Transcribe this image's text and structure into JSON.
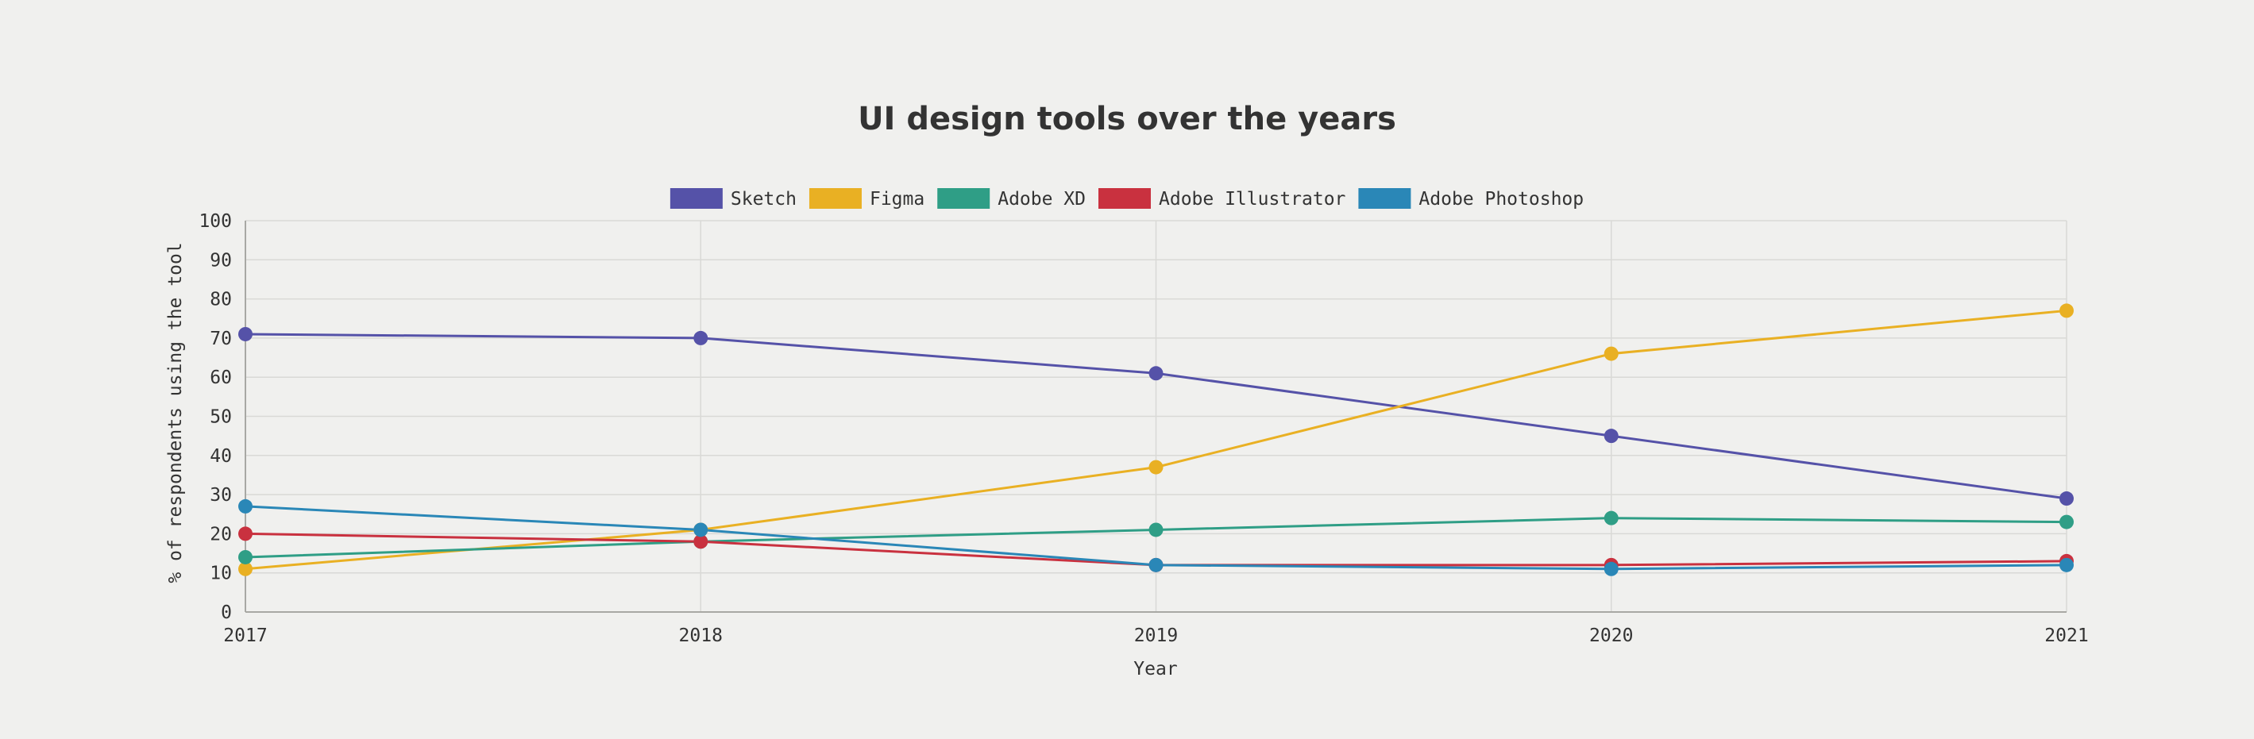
{
  "chart_data": {
    "type": "line",
    "title": "UI design tools over the years",
    "xlabel": "Year",
    "ylabel": "% of respondents using the tool",
    "categories": [
      "2017",
      "2018",
      "2019",
      "2020",
      "2021"
    ],
    "ylim": [
      0,
      100
    ],
    "yticks": [
      "0",
      "10",
      "20",
      "30",
      "40",
      "50",
      "60",
      "70",
      "80",
      "90",
      "100"
    ],
    "grid": true,
    "legend_position": "top",
    "series": [
      {
        "name": "Sketch",
        "color": "#5552a8",
        "values": [
          71,
          70,
          61,
          45,
          29
        ]
      },
      {
        "name": "Figma",
        "color": "#e9b023",
        "values": [
          11,
          21,
          37,
          66,
          77
        ]
      },
      {
        "name": "Adobe XD",
        "color": "#2f9e86",
        "values": [
          14,
          18,
          21,
          24,
          23
        ]
      },
      {
        "name": "Adobe Illustrator",
        "color": "#c9313f",
        "values": [
          20,
          18,
          12,
          12,
          13
        ]
      },
      {
        "name": "Adobe Photoshop",
        "color": "#2a87b7",
        "values": [
          27,
          21,
          12,
          11,
          12
        ]
      }
    ]
  }
}
